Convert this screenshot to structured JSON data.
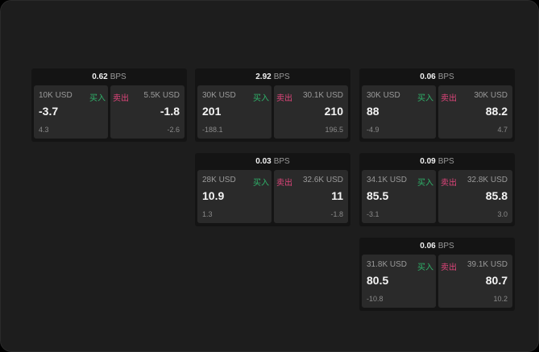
{
  "labels": {
    "buy": "买入",
    "sell": "卖出",
    "unit": "BPS"
  },
  "colors": {
    "buy": "#2fb36a",
    "sell": "#e0457b"
  },
  "cards": [
    {
      "bps": "0.62",
      "buy": {
        "size": "10K USD",
        "value": "-3.7",
        "change": "4.3"
      },
      "sell": {
        "size": "5.5K USD",
        "value": "-1.8",
        "change": "-2.6"
      }
    },
    {
      "bps": "2.92",
      "buy": {
        "size": "30K USD",
        "value": "201",
        "change": "-188.1"
      },
      "sell": {
        "size": "30.1K USD",
        "value": "210",
        "change": "196.5"
      }
    },
    {
      "bps": "0.06",
      "buy": {
        "size": "30K USD",
        "value": "88",
        "change": "-4.9"
      },
      "sell": {
        "size": "30K USD",
        "value": "88.2",
        "change": "4.7"
      }
    },
    {
      "bps": "0.03",
      "buy": {
        "size": "28K USD",
        "value": "10.9",
        "change": "1.3"
      },
      "sell": {
        "size": "32.6K USD",
        "value": "11",
        "change": "-1.8"
      }
    },
    {
      "bps": "0.09",
      "buy": {
        "size": "34.1K USD",
        "value": "85.5",
        "change": "-3.1"
      },
      "sell": {
        "size": "32.8K USD",
        "value": "85.8",
        "change": "3.0"
      }
    },
    {
      "bps": "0.06",
      "buy": {
        "size": "31.8K USD",
        "value": "80.5",
        "change": "-10.8"
      },
      "sell": {
        "size": "39.1K USD",
        "value": "80.7",
        "change": "10.2"
      }
    }
  ]
}
